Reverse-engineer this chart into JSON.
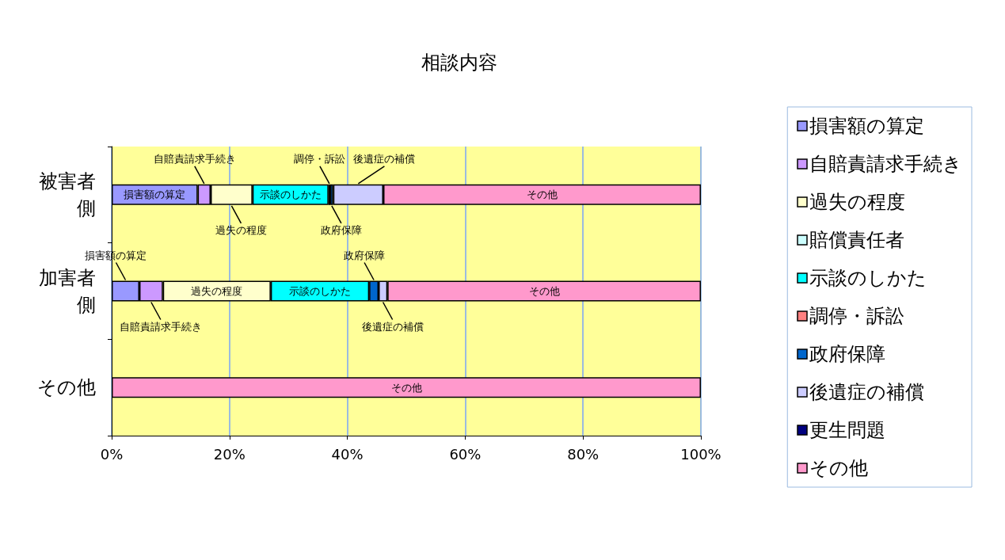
{
  "chart_data": {
    "type": "bar",
    "title": "相談内容",
    "orientation": "horizontal",
    "stacked": true,
    "categories": [
      "被害者側",
      "加害者側",
      "その他"
    ],
    "series": [
      {
        "name": "損害額の算定",
        "color": "#9999ff",
        "values": [
          14.6,
          4.7,
          0
        ]
      },
      {
        "name": "自賠責請求手続き",
        "color": "#cc99ff",
        "values": [
          2.2,
          4.0,
          0
        ]
      },
      {
        "name": "過失の程度",
        "color": "#ffffcc",
        "values": [
          7.1,
          18.3,
          0
        ]
      },
      {
        "name": "賠償責任者",
        "color": "#ccffff",
        "values": [
          0,
          0,
          0
        ]
      },
      {
        "name": "示談のしかた",
        "color": "#00ffff",
        "values": [
          12.9,
          16.7,
          0
        ]
      },
      {
        "name": "調停・訴訟",
        "color": "#ff8080",
        "values": [
          0.3,
          0,
          0
        ]
      },
      {
        "name": "政府保障",
        "color": "#0066cc",
        "values": [
          0.5,
          1.6,
          0
        ]
      },
      {
        "name": "後遺症の補償",
        "color": "#ccccff",
        "values": [
          8.5,
          1.5,
          0
        ]
      },
      {
        "name": "更生問題",
        "color": "#000080",
        "values": [
          0,
          0,
          0
        ]
      },
      {
        "name": "その他",
        "color": "#ff99cc",
        "values": [
          53.9,
          53.2,
          100
        ]
      }
    ],
    "xlim": [
      0,
      100
    ],
    "xticks": [
      {
        "value": 0,
        "label": "0%"
      },
      {
        "value": 20,
        "label": "20%"
      },
      {
        "value": 40,
        "label": "40%"
      },
      {
        "value": 60,
        "label": "60%"
      },
      {
        "value": 80,
        "label": "80%"
      },
      {
        "value": 100,
        "label": "100%"
      }
    ],
    "grid": "x",
    "legend": "right"
  }
}
